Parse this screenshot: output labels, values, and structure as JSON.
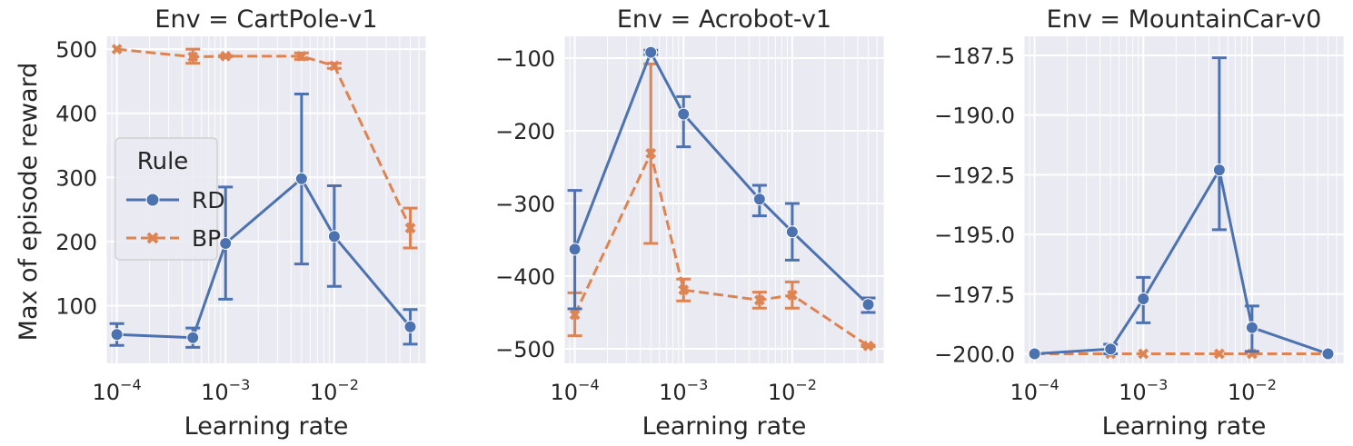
{
  "y_axis_label": "Max of episode reward",
  "legend": {
    "title": "Rule",
    "entries": [
      {
        "label": "RD",
        "color": "#4c72b0",
        "marker": "circle",
        "dash": "solid"
      },
      {
        "label": "BP",
        "color": "#dd8452",
        "marker": "x",
        "dash": "dashed"
      }
    ]
  },
  "chart_data": [
    {
      "type": "line",
      "title": "Env = CartPole-v1",
      "xlabel": "Learning rate",
      "ylabel": "Max of episode reward",
      "xscale": "log",
      "xlim": [
        8e-05,
        0.07
      ],
      "ylim": [
        10,
        520
      ],
      "x_ticks": [
        {
          "value": 0.0001,
          "exp": "-4"
        },
        {
          "value": 0.001,
          "exp": "-3"
        },
        {
          "value": 0.01,
          "exp": "-2"
        }
      ],
      "y_ticks": [
        100,
        200,
        300,
        400,
        500
      ],
      "x": [
        0.0001,
        0.0005,
        0.001,
        0.005,
        0.01,
        0.05
      ],
      "series": [
        {
          "name": "RD",
          "values": [
            55,
            50,
            197,
            298,
            208,
            67
          ],
          "err_low": [
            38,
            35,
            110,
            165,
            130,
            40
          ],
          "err_high": [
            72,
            65,
            285,
            430,
            287,
            94
          ]
        },
        {
          "name": "BP",
          "values": [
            500,
            488,
            489,
            489,
            474,
            221
          ],
          "err_low": [
            500,
            478,
            488,
            484,
            470,
            190
          ],
          "err_high": [
            500,
            500,
            490,
            494,
            478,
            252
          ]
        }
      ],
      "grid": true,
      "legend_position": "center-left"
    },
    {
      "type": "line",
      "title": "Env = Acrobot-v1",
      "xlabel": "Learning rate",
      "ylabel": "",
      "xscale": "log",
      "xlim": [
        8e-05,
        0.07
      ],
      "ylim": [
        -520,
        -70
      ],
      "x_ticks": [
        {
          "value": 0.0001,
          "exp": "-4"
        },
        {
          "value": 0.001,
          "exp": "-3"
        },
        {
          "value": 0.01,
          "exp": "-2"
        }
      ],
      "y_ticks": [
        -500,
        -400,
        -300,
        -200,
        -100
      ],
      "x": [
        0.0001,
        0.0005,
        0.001,
        0.005,
        0.01,
        0.05
      ],
      "series": [
        {
          "name": "RD",
          "values": [
            -363,
            -92,
            -177,
            -294,
            -339,
            -439
          ],
          "err_low": [
            -445,
            -95,
            -222,
            -317,
            -378,
            -450
          ],
          "err_high": [
            -282,
            -89,
            -153,
            -275,
            -300,
            -430
          ]
        },
        {
          "name": "BP",
          "values": [
            -453,
            -231,
            -419,
            -433,
            -426,
            -496
          ],
          "err_low": [
            -482,
            -355,
            -434,
            -444,
            -444,
            -497
          ],
          "err_high": [
            -423,
            -108,
            -404,
            -422,
            -408,
            -495
          ]
        }
      ],
      "grid": true
    },
    {
      "type": "line",
      "title": "Env = MountainCar-v0",
      "xlabel": "Learning rate",
      "ylabel": "",
      "xscale": "log",
      "xlim": [
        8e-05,
        0.07
      ],
      "ylim": [
        -200.4,
        -186.7
      ],
      "x_ticks": [
        {
          "value": 0.0001,
          "exp": "-4"
        },
        {
          "value": 0.001,
          "exp": "-3"
        },
        {
          "value": 0.01,
          "exp": "-2"
        }
      ],
      "y_ticks": [
        -200.0,
        -197.5,
        -195.0,
        -192.5,
        -190.0,
        -187.5
      ],
      "y_tick_labels": [
        "−200.0",
        "−197.5",
        "−195.0",
        "−192.5",
        "−190.0",
        "−187.5"
      ],
      "x": [
        0.0001,
        0.0005,
        0.001,
        0.005,
        0.01,
        0.05
      ],
      "series": [
        {
          "name": "RD",
          "values": [
            -200.0,
            -199.8,
            -197.7,
            -192.3,
            -198.9,
            -200.0
          ],
          "err_low": [
            -200.0,
            -200.0,
            -198.7,
            -194.8,
            -199.9,
            -200.0
          ],
          "err_high": [
            -200.0,
            -199.6,
            -196.8,
            -187.6,
            -198.0,
            -200.0
          ]
        },
        {
          "name": "BP",
          "values": [
            -200.0,
            -200.0,
            -200.0,
            -200.0,
            -200.0,
            -200.0
          ],
          "err_low": [
            -200.0,
            -200.0,
            -200.0,
            -200.0,
            -200.0,
            -200.0
          ],
          "err_high": [
            -200.0,
            -200.0,
            -200.0,
            -200.0,
            -200.0,
            -200.0
          ]
        }
      ],
      "grid": true
    }
  ]
}
